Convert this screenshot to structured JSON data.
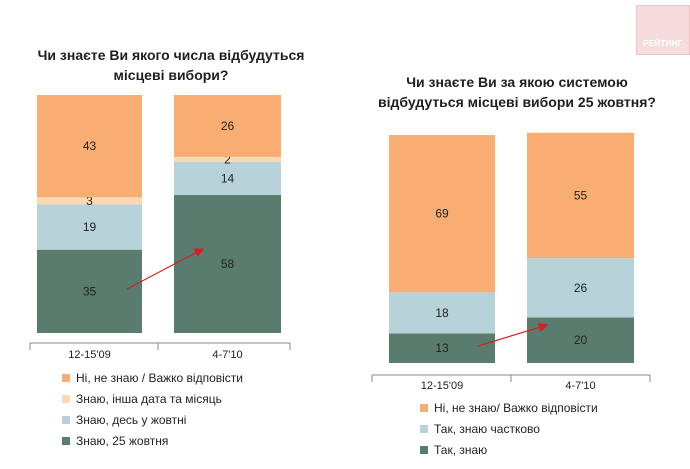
{
  "logo": {
    "text": "РЕЙТИНГ"
  },
  "colors": {
    "dont_know": "#F8AE73",
    "other": "#FBD9B4",
    "partial": "#B7D3D9",
    "yes": "#5A7C6E",
    "arrow": "#D42020",
    "axis": "#8A8A8A"
  },
  "chart_data": [
    {
      "type": "bar",
      "stacked": true,
      "title": [
        "Чи знаєте Ви якого числа відбудуться",
        "місцеві вибори?"
      ],
      "categories": [
        "12-15'09",
        "4-7'10"
      ],
      "series": [
        {
          "name": "Знаю, 25 жовтня",
          "color": "#5A7C6E",
          "values": [
            35,
            58
          ]
        },
        {
          "name": "Знаю, десь у жовтні",
          "color": "#B7D3D9",
          "values": [
            19,
            14
          ]
        },
        {
          "name": "Знаю, інша дата та місяць",
          "color": "#FBD9B4",
          "values": [
            3,
            2
          ]
        },
        {
          "name": "Ні, не знаю / Важко відповісти",
          "color": "#F8AE73",
          "values": [
            43,
            26
          ]
        }
      ],
      "legend_order": [
        3,
        2,
        1,
        0
      ],
      "legend_position": "bottom",
      "arrow": true
    },
    {
      "type": "bar",
      "stacked": true,
      "title": [
        "Чи знаєте Ви за якою системою",
        "відбудуться місцеві вибори 25 жовтня?"
      ],
      "categories": [
        "12-15'09",
        "4-7'10"
      ],
      "series": [
        {
          "name": "Так, знаю",
          "color": "#5A7C6E",
          "values": [
            13,
            20
          ]
        },
        {
          "name": "Так, знаю частково",
          "color": "#B7D3D9",
          "values": [
            18,
            26
          ]
        },
        {
          "name": "Ні, не знаю/ Важко відповісти",
          "color": "#F8AE73",
          "values": [
            69,
            55
          ]
        }
      ],
      "legend_order": [
        2,
        1,
        0
      ],
      "legend_position": "bottom",
      "arrow": true
    }
  ]
}
